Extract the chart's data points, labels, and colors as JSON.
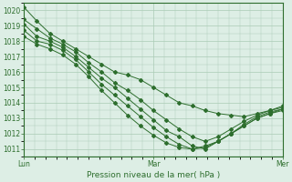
{
  "xlabel": "Pression niveau de la mer( hPa )",
  "xtick_labels": [
    "Lun",
    "Mar",
    "Mer"
  ],
  "xtick_positions": [
    0,
    48,
    96
  ],
  "ylim": [
    1010.5,
    1020.5
  ],
  "yticks": [
    1011,
    1012,
    1013,
    1014,
    1015,
    1016,
    1017,
    1018,
    1019,
    1020
  ],
  "background_color": "#ddeee5",
  "grid_color": "#aacbb5",
  "line_color": "#2d6e2d",
  "series": [
    [
      1020.2,
      1019.3,
      1018.5,
      1018.0,
      1017.5,
      1017.0,
      1016.5,
      1016.0,
      1015.8,
      1015.5,
      1015.0,
      1014.5,
      1014.0,
      1013.8,
      1013.5,
      1013.3,
      1013.2,
      1013.1,
      1013.3,
      1013.5,
      1013.7
    ],
    [
      1019.4,
      1018.8,
      1018.2,
      1017.8,
      1017.3,
      1016.6,
      1016.0,
      1015.3,
      1014.8,
      1014.2,
      1013.5,
      1012.9,
      1012.3,
      1011.8,
      1011.5,
      1011.8,
      1012.3,
      1012.8,
      1013.2,
      1013.5,
      1013.8
    ],
    [
      1019.1,
      1018.3,
      1018.0,
      1017.6,
      1017.0,
      1016.3,
      1015.6,
      1015.0,
      1014.3,
      1013.6,
      1012.9,
      1012.2,
      1011.8,
      1011.2,
      1011.0,
      1011.5,
      1012.0,
      1012.5,
      1013.0,
      1013.3,
      1013.6
    ],
    [
      1018.7,
      1018.0,
      1017.8,
      1017.4,
      1016.8,
      1016.0,
      1015.2,
      1014.5,
      1013.8,
      1013.1,
      1012.4,
      1011.8,
      1011.3,
      1011.0,
      1011.1,
      1011.5,
      1012.0,
      1012.6,
      1013.1,
      1013.4,
      1013.6
    ],
    [
      1018.3,
      1017.8,
      1017.5,
      1017.1,
      1016.5,
      1015.7,
      1014.8,
      1014.0,
      1013.2,
      1012.5,
      1011.9,
      1011.4,
      1011.1,
      1011.0,
      1011.2,
      1011.5,
      1012.0,
      1012.5,
      1013.0,
      1013.3,
      1013.5
    ]
  ]
}
